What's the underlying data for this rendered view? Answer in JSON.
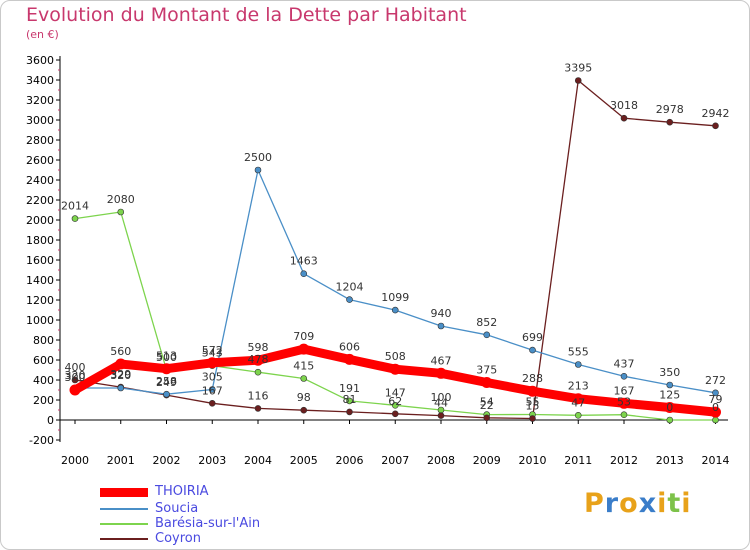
{
  "chart_data": {
    "type": "line",
    "title": "Evolution du Montant de la Dette par Habitant",
    "subtitle": "(en €)",
    "x": [
      "2000",
      "2001",
      "2002",
      "2003",
      "2004",
      "2005",
      "2006",
      "2007",
      "2008",
      "2009",
      "2010",
      "2011",
      "2012",
      "2013",
      "2014"
    ],
    "ylim": [
      -200,
      3600
    ],
    "yticks": [
      -200,
      0,
      200,
      400,
      600,
      800,
      1000,
      1200,
      1400,
      1600,
      1800,
      2000,
      2200,
      2400,
      2600,
      2800,
      3000,
      3200,
      3400,
      3600
    ],
    "grid": false,
    "legend_position": "bottom-left",
    "series": [
      {
        "name": "THOIRIA",
        "color": "#ff0000",
        "values": [
          300,
          560,
          513,
          572,
          598,
          709,
          606,
          508,
          467,
          375,
          288,
          213,
          167,
          125,
          79
        ]
      },
      {
        "name": "Soucia",
        "color": "#4a8fc7",
        "values": [
          320,
          320,
          258,
          305,
          2500,
          1463,
          1204,
          1099,
          940,
          852,
          699,
          555,
          437,
          350,
          272
        ]
      },
      {
        "name": "Barésia-sur-l'Ain",
        "color": "#7dd44d",
        "values": [
          2014,
          2080,
          500,
          543,
          478,
          415,
          191,
          147,
          100,
          54,
          55,
          47,
          53,
          0,
          0
        ]
      },
      {
        "name": "Coyron",
        "color": "#6b1f1f",
        "values": [
          400,
          329,
          249,
          167,
          116,
          98,
          81,
          62,
          44,
          22,
          15,
          3395,
          3018,
          2978,
          2942
        ]
      }
    ]
  },
  "logo": {
    "text": "Proxiti",
    "letters": [
      "P",
      "r",
      "o",
      "x",
      "i",
      "t",
      "i"
    ],
    "colors": [
      "#e8a21a",
      "#3a7dc9",
      "#e8a21a",
      "#3a7dc9",
      "#e8a21a",
      "#7dc24a",
      "#e8a21a"
    ]
  }
}
